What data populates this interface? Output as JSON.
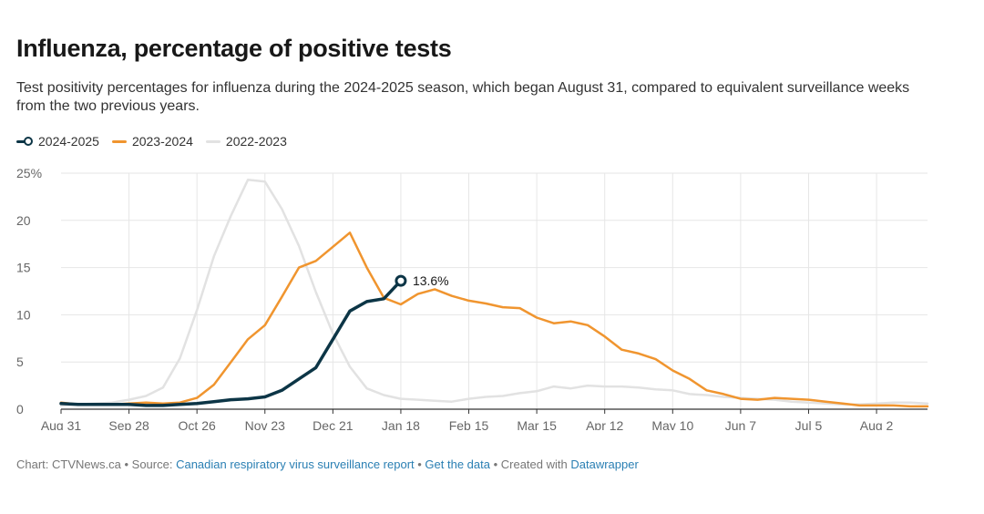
{
  "title": "Influenza, percentage of positive tests",
  "subtitle": "Test positivity percentages for influenza during the 2024-2025 season, which began August 31, compared to equivalent surveillance weeks from the two previous years.",
  "footer": {
    "chart_prefix": "Chart: CTVNews.ca",
    "sep1": " • Source: ",
    "source_link": "Canadian respiratory virus surveillance report",
    "sep2": " • ",
    "data_link": "Get the data",
    "sep3": " • Created with ",
    "tool_link": "Datawrapper"
  },
  "colors": {
    "series_2024_2025": "#0c3546",
    "series_2023_2024": "#f0952f",
    "series_2022_2023": "#e2e2e2",
    "grid": "#e6e6e6",
    "axis": "#333333"
  },
  "chart_data": {
    "type": "line",
    "ylim": [
      0,
      25
    ],
    "y_ticks": [
      "0",
      "5",
      "10",
      "15",
      "20",
      "25%"
    ],
    "y_tick_values": [
      0,
      5,
      10,
      15,
      20,
      25
    ],
    "x_tick_labels": [
      "Aug 31",
      "Sep 28",
      "Oct 26",
      "Nov 23",
      "Dec 21",
      "Jan 18",
      "Feb 15",
      "Mar 15",
      "Apr 12",
      "May 10",
      "Jun 7",
      "Jul 5",
      "Aug 2"
    ],
    "x_tick_weeks": [
      0,
      4,
      8,
      12,
      16,
      20,
      24,
      28,
      32,
      36,
      40,
      44,
      48
    ],
    "x_range_weeks": [
      0,
      51
    ],
    "grid": true,
    "legend_position": "top-left",
    "annotation": {
      "series": "2024-2025",
      "text": "13.6%"
    },
    "series": [
      {
        "name": "2024-2025",
        "color_key": "series_2024_2025",
        "end_marker": true,
        "x": [
          0,
          1,
          2,
          3,
          4,
          5,
          6,
          7,
          8,
          9,
          10,
          11,
          12,
          13,
          14,
          15,
          16,
          17,
          18,
          19,
          20
        ],
        "values": [
          0.6,
          0.5,
          0.5,
          0.5,
          0.5,
          0.4,
          0.4,
          0.5,
          0.6,
          0.8,
          1.0,
          1.1,
          1.3,
          2.0,
          3.2,
          4.4,
          7.4,
          10.4,
          11.4,
          11.7,
          13.6
        ]
      },
      {
        "name": "2023-2024",
        "color_key": "series_2023_2024",
        "x": [
          0,
          1,
          2,
          3,
          4,
          5,
          6,
          7,
          8,
          9,
          10,
          11,
          12,
          13,
          14,
          15,
          16,
          17,
          18,
          19,
          20,
          21,
          22,
          23,
          24,
          25,
          26,
          27,
          28,
          29,
          30,
          31,
          32,
          33,
          34,
          35,
          36,
          37,
          38,
          39,
          40,
          41,
          42,
          43,
          44,
          45,
          46,
          47,
          48,
          49,
          50,
          51
        ],
        "values": [
          0.7,
          0.5,
          0.5,
          0.5,
          0.6,
          0.7,
          0.6,
          0.7,
          1.2,
          2.6,
          5.0,
          7.4,
          8.9,
          11.9,
          15.0,
          15.7,
          17.2,
          18.7,
          15.0,
          11.8,
          11.1,
          12.2,
          12.7,
          12.0,
          11.5,
          11.2,
          10.8,
          10.7,
          9.7,
          9.1,
          9.3,
          8.9,
          7.7,
          6.3,
          5.9,
          5.3,
          4.1,
          3.2,
          2.0,
          1.6,
          1.1,
          1.0,
          1.2,
          1.1,
          1.0,
          0.8,
          0.6,
          0.4,
          0.4,
          0.4,
          0.3,
          0.3
        ]
      },
      {
        "name": "2022-2023",
        "color_key": "series_2022_2023",
        "x": [
          0,
          1,
          2,
          3,
          4,
          5,
          6,
          7,
          8,
          9,
          10,
          11,
          12,
          13,
          14,
          15,
          16,
          17,
          18,
          19,
          20,
          21,
          22,
          23,
          24,
          25,
          26,
          27,
          28,
          29,
          30,
          31,
          32,
          33,
          34,
          35,
          36,
          37,
          38,
          39,
          40,
          41,
          42,
          43,
          44,
          45,
          46,
          47,
          48,
          49,
          50,
          51
        ],
        "values": [
          0.4,
          0.5,
          0.6,
          0.7,
          1.0,
          1.4,
          2.3,
          5.4,
          10.5,
          16.2,
          20.5,
          24.3,
          24.1,
          21.2,
          17.3,
          12.4,
          8.0,
          4.5,
          2.2,
          1.5,
          1.1,
          1.0,
          0.9,
          0.8,
          1.1,
          1.3,
          1.4,
          1.7,
          1.9,
          2.4,
          2.2,
          2.5,
          2.4,
          2.4,
          2.3,
          2.1,
          2.0,
          1.6,
          1.5,
          1.3,
          1.2,
          1.1,
          1.0,
          0.8,
          0.7,
          0.6,
          0.5,
          0.5,
          0.6,
          0.7,
          0.7,
          0.6
        ]
      }
    ]
  }
}
